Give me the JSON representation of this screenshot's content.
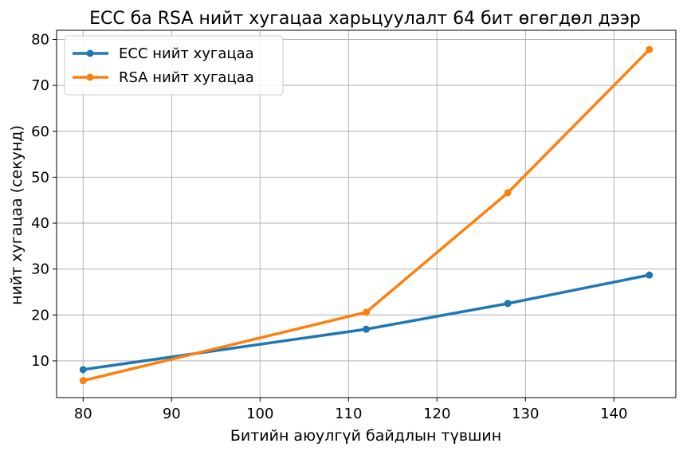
{
  "chart_data": {
    "type": "line",
    "title": "ECC ба RSA нийт хугацаа харьцуулалт 64 бит өгөгдөл дээр",
    "xlabel": "Битийн аюулгүй байдлын түвшин",
    "ylabel": "нийт хугацаа (секунд)",
    "xlim": [
      77,
      147
    ],
    "ylim": [
      2,
      82
    ],
    "xticks": [
      80,
      90,
      100,
      110,
      120,
      130,
      140
    ],
    "yticks": [
      10,
      20,
      30,
      40,
      50,
      60,
      70,
      80
    ],
    "grid": true,
    "legend_position": "top-left",
    "series": [
      {
        "name": "ECC нийт хугацаа",
        "color": "#1f77b4",
        "x": [
          80,
          112,
          128,
          144
        ],
        "y": [
          8.1,
          16.9,
          22.5,
          28.7
        ]
      },
      {
        "name": "RSA нийт хугацаа",
        "color": "#ff7f0e",
        "x": [
          80,
          112,
          128,
          144
        ],
        "y": [
          5.7,
          20.6,
          46.6,
          77.8
        ]
      }
    ]
  }
}
